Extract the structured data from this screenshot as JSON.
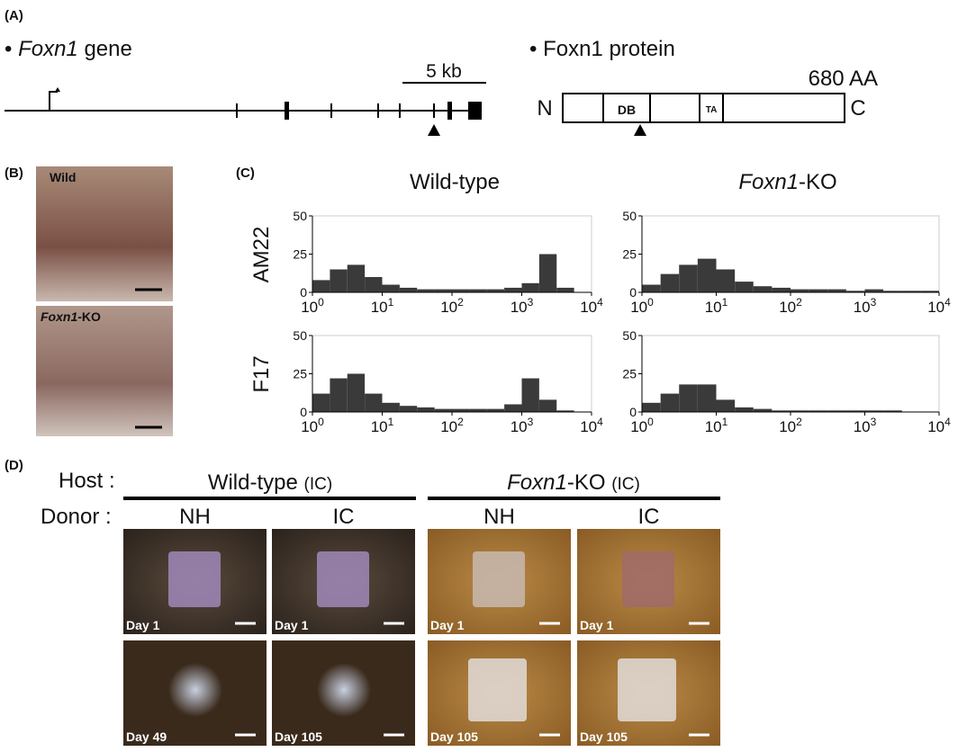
{
  "panel_a": {
    "label": "(A)",
    "gene": {
      "bullet": "•",
      "name": "Foxn1",
      "suffix": " gene",
      "scale": "5 kb"
    },
    "protein": {
      "bullet": "•",
      "title": "Foxn1 protein",
      "length": "680 AA",
      "n": "N",
      "c": "C",
      "domains": [
        "DB",
        "TA"
      ]
    }
  },
  "panel_b": {
    "label": "(B)",
    "photos": [
      {
        "text": "Wild"
      },
      {
        "name": "Foxn1",
        "suffix": "-KO"
      }
    ]
  },
  "panel_c": {
    "label": "(C)",
    "columns": [
      {
        "text": "Wild-type"
      },
      {
        "name": "Foxn1",
        "suffix": "-KO"
      }
    ],
    "rows": [
      "AM22",
      "F17"
    ]
  },
  "chart_data": [
    {
      "type": "histogram",
      "bins": [
        1,
        1.78,
        3.16,
        5.62,
        10,
        17.8,
        31.6,
        56.2,
        100,
        178,
        316,
        562,
        1000,
        1778,
        3162,
        5623,
        10000
      ],
      "values": [
        8,
        15,
        18,
        10,
        5,
        3,
        2,
        2,
        2,
        2,
        2,
        3,
        6,
        25,
        3,
        0
      ],
      "color": "#3a3a3a",
      "xlim": [
        1,
        10000
      ],
      "xscale": "log",
      "xticks": [
        {
          "value": 1,
          "label": "10",
          "sup": "0"
        },
        {
          "value": 10,
          "label": "10",
          "sup": "1"
        },
        {
          "value": 100,
          "label": "10",
          "sup": "2"
        },
        {
          "value": 1000,
          "label": "10",
          "sup": "3"
        },
        {
          "value": 10000,
          "label": "10",
          "sup": "4"
        }
      ],
      "ylim": [
        0,
        50
      ],
      "yticks": [
        0,
        25,
        50
      ]
    },
    {
      "type": "histogram",
      "bins": [
        1,
        1.78,
        3.16,
        5.62,
        10,
        17.8,
        31.6,
        56.2,
        100,
        178,
        316,
        562,
        1000,
        1778,
        3162,
        5623,
        10000
      ],
      "values": [
        5,
        12,
        18,
        22,
        15,
        7,
        4,
        3,
        2,
        2,
        2,
        1,
        2,
        1,
        1,
        1
      ],
      "color": "#3a3a3a",
      "xlim": [
        1,
        10000
      ],
      "xscale": "log",
      "xticks": [
        {
          "value": 1,
          "label": "10",
          "sup": "0"
        },
        {
          "value": 10,
          "label": "10",
          "sup": "1"
        },
        {
          "value": 100,
          "label": "10",
          "sup": "2"
        },
        {
          "value": 1000,
          "label": "10",
          "sup": "3"
        },
        {
          "value": 10000,
          "label": "10",
          "sup": "4"
        }
      ],
      "ylim": [
        0,
        50
      ],
      "yticks": [
        0,
        25,
        50
      ]
    },
    {
      "type": "histogram",
      "bins": [
        1,
        1.78,
        3.16,
        5.62,
        10,
        17.8,
        31.6,
        56.2,
        100,
        178,
        316,
        562,
        1000,
        1778,
        3162,
        5623,
        10000
      ],
      "values": [
        12,
        22,
        25,
        12,
        6,
        4,
        3,
        2,
        2,
        2,
        2,
        5,
        22,
        8,
        1,
        0
      ],
      "color": "#3a3a3a",
      "xlim": [
        1,
        10000
      ],
      "xscale": "log",
      "xticks": [
        {
          "value": 1,
          "label": "10",
          "sup": "0"
        },
        {
          "value": 10,
          "label": "10",
          "sup": "1"
        },
        {
          "value": 100,
          "label": "10",
          "sup": "2"
        },
        {
          "value": 1000,
          "label": "10",
          "sup": "3"
        },
        {
          "value": 10000,
          "label": "10",
          "sup": "4"
        }
      ],
      "ylim": [
        0,
        50
      ],
      "yticks": [
        0,
        25,
        50
      ]
    },
    {
      "type": "histogram",
      "bins": [
        1,
        1.78,
        3.16,
        5.62,
        10,
        17.8,
        31.6,
        56.2,
        100,
        178,
        316,
        562,
        1000,
        1778,
        3162,
        5623,
        10000
      ],
      "values": [
        6,
        12,
        18,
        18,
        8,
        3,
        2,
        1,
        1,
        1,
        1,
        1,
        1,
        1,
        0,
        0
      ],
      "color": "#3a3a3a",
      "xlim": [
        1,
        10000
      ],
      "xscale": "log",
      "xticks": [
        {
          "value": 1,
          "label": "10",
          "sup": "0"
        },
        {
          "value": 10,
          "label": "10",
          "sup": "1"
        },
        {
          "value": 100,
          "label": "10",
          "sup": "2"
        },
        {
          "value": 1000,
          "label": "10",
          "sup": "3"
        },
        {
          "value": 10000,
          "label": "10",
          "sup": "4"
        }
      ],
      "ylim": [
        0,
        50
      ],
      "yticks": [
        0,
        25,
        50
      ]
    }
  ],
  "panel_d": {
    "label": "(D)",
    "host_label": "Host :",
    "donor_label": "Donor :",
    "hosts": [
      {
        "text": "Wild-type",
        "note": "(IC)"
      },
      {
        "name": "Foxn1",
        "suffix": "-KO",
        "note": "(IC)"
      }
    ],
    "donors": [
      "NH",
      "IC",
      "NH",
      "IC"
    ],
    "days": [
      [
        "Day 1",
        "Day 1",
        "Day 1",
        "Day 1"
      ],
      [
        "Day 49",
        "Day 105",
        "Day 105",
        "Day 105"
      ]
    ]
  }
}
